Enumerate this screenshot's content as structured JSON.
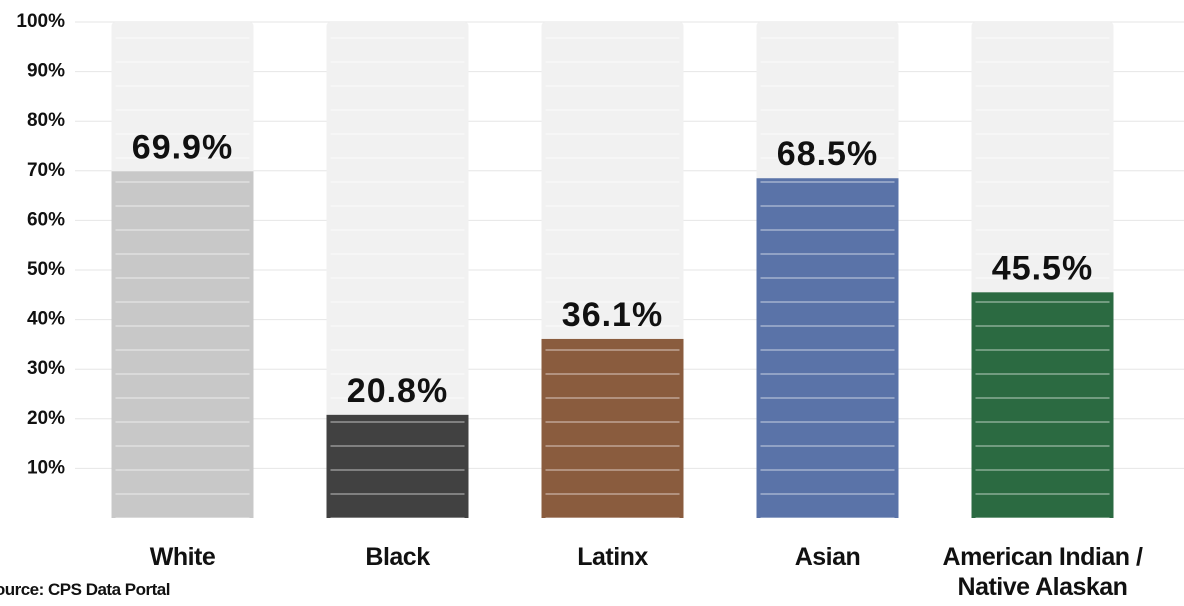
{
  "chart_data": {
    "type": "bar",
    "categories": [
      "White",
      "Black",
      "Latinx",
      "Asian",
      "American Indian / Native Alaskan"
    ],
    "values": [
      69.9,
      20.8,
      36.1,
      68.5,
      45.5
    ],
    "value_labels": [
      "69.9%",
      "20.8%",
      "36.1%",
      "68.5%",
      "45.5%"
    ],
    "colors": [
      "#c8c8c8",
      "#414141",
      "#8a5c3e",
      "#5a73a8",
      "#2b6a41"
    ],
    "ylim": [
      0,
      100
    ],
    "yticks": [
      {
        "value": 10,
        "label": "10%"
      },
      {
        "value": 20,
        "label": "20%"
      },
      {
        "value": 30,
        "label": "30%"
      },
      {
        "value": 40,
        "label": "40%"
      },
      {
        "value": 50,
        "label": "50%"
      },
      {
        "value": 60,
        "label": "60%"
      },
      {
        "value": 70,
        "label": "70%"
      },
      {
        "value": 80,
        "label": "80%"
      },
      {
        "value": 90,
        "label": "90%"
      },
      {
        "value": 100,
        "label": "100%"
      }
    ],
    "grid": true,
    "source": "Source: CPS Data Portal"
  }
}
